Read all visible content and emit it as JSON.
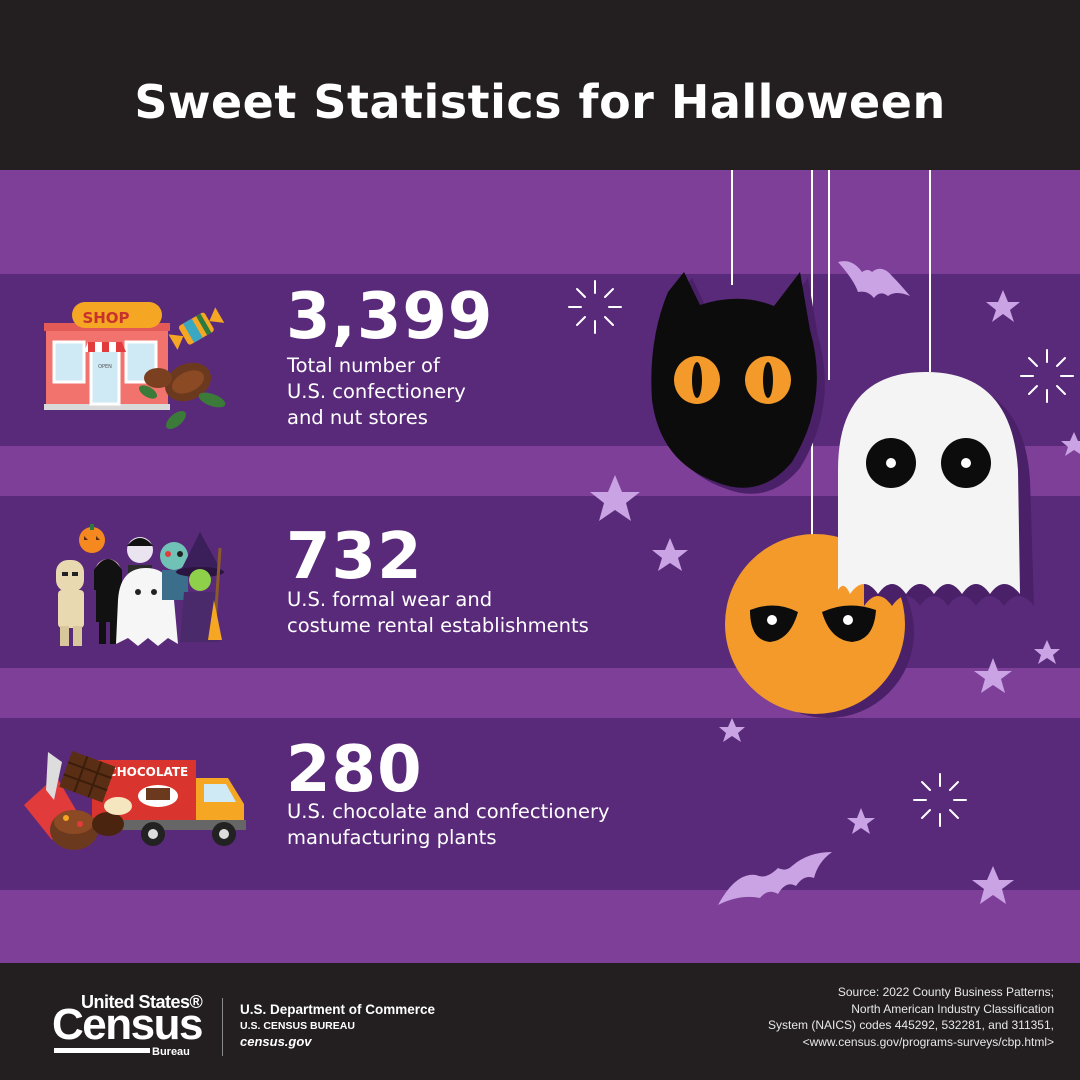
{
  "title": "Sweet Statistics for Halloween",
  "stats": [
    {
      "value": "3,399",
      "description": "Total number of\nU.S. confectionery\nand nut stores",
      "icon": "candy-shop-icon"
    },
    {
      "value": "732",
      "description": "U.S. formal wear and\ncostume rental establishments",
      "icon": "costumed-kids-icon"
    },
    {
      "value": "280",
      "description": "U.S. chocolate and confectionery\nmanufacturing plants",
      "icon": "chocolate-truck-icon"
    }
  ],
  "illustrations": {
    "shop_sign": "SHOP",
    "shop_door_sign": "OPEN",
    "truck_label": "CHOCOLATE"
  },
  "footer": {
    "logo_line1": "United States®",
    "logo_line2": "Census",
    "logo_line3": "Bureau",
    "department": "U.S. Department of Commerce",
    "bureau": "U.S. CENSUS BUREAU",
    "website": "census.gov",
    "source": "Source: 2022 County Business Patterns;\nNorth American Industry Classification\nSystem (NAICS) codes 445292, 532281, and 311351,\n<www.census.gov/programs-surveys/cbp.html>"
  },
  "colors": {
    "background_purple": "#7e3f98",
    "band_purple": "#5a2a7a",
    "header_footer": "#231f20",
    "pumpkin_orange": "#f39a2b",
    "star_lilac": "#c9a3e3"
  }
}
